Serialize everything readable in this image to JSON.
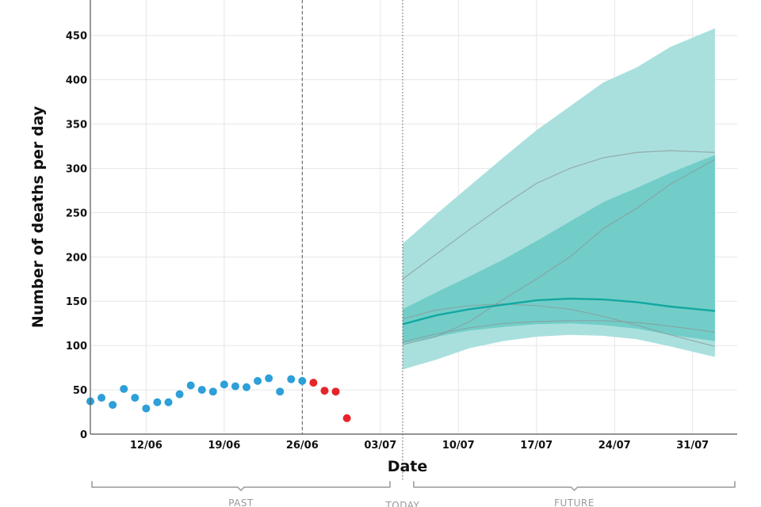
{
  "chart_data": {
    "type": "line",
    "xlabel": "Date",
    "ylabel": "Number of deaths per day",
    "ylim": [
      0,
      490
    ],
    "yticks": [
      0,
      50,
      100,
      150,
      200,
      250,
      300,
      350,
      400,
      450
    ],
    "xlim": [
      "2020-06-07",
      "2020-08-04"
    ],
    "xticks": [
      {
        "date": "2020-06-12",
        "label": "12/06"
      },
      {
        "date": "2020-06-19",
        "label": "19/06"
      },
      {
        "date": "2020-06-26",
        "label": "26/06"
      },
      {
        "date": "2020-07-03",
        "label": "03/07"
      },
      {
        "date": "2020-07-10",
        "label": "10/07"
      },
      {
        "date": "2020-07-17",
        "label": "17/07"
      },
      {
        "date": "2020-07-24",
        "label": "24/07"
      },
      {
        "date": "2020-07-31",
        "label": "31/07"
      }
    ],
    "grid": true,
    "reference_lines": [
      {
        "date": "2020-06-26",
        "style": "dashed"
      },
      {
        "date": "2020-07-05",
        "style": "dotted"
      }
    ],
    "observed": [
      {
        "date": "2020-06-07",
        "value": 37
      },
      {
        "date": "2020-06-08",
        "value": 41
      },
      {
        "date": "2020-06-09",
        "value": 33
      },
      {
        "date": "2020-06-10",
        "value": 51
      },
      {
        "date": "2020-06-11",
        "value": 41
      },
      {
        "date": "2020-06-12",
        "value": 29
      },
      {
        "date": "2020-06-13",
        "value": 36
      },
      {
        "date": "2020-06-14",
        "value": 36
      },
      {
        "date": "2020-06-15",
        "value": 45
      },
      {
        "date": "2020-06-16",
        "value": 55
      },
      {
        "date": "2020-06-17",
        "value": 50
      },
      {
        "date": "2020-06-18",
        "value": 48
      },
      {
        "date": "2020-06-19",
        "value": 56
      },
      {
        "date": "2020-06-20",
        "value": 54
      },
      {
        "date": "2020-06-21",
        "value": 53
      },
      {
        "date": "2020-06-22",
        "value": 60
      },
      {
        "date": "2020-06-23",
        "value": 63
      },
      {
        "date": "2020-06-24",
        "value": 48
      },
      {
        "date": "2020-06-25",
        "value": 62
      },
      {
        "date": "2020-06-26",
        "value": 60
      }
    ],
    "incomplete": [
      {
        "date": "2020-06-27",
        "value": 58
      },
      {
        "date": "2020-06-28",
        "value": 49
      },
      {
        "date": "2020-06-29",
        "value": 48
      },
      {
        "date": "2020-06-30",
        "value": 18
      }
    ],
    "forecast": {
      "dates": [
        "2020-07-05",
        "2020-07-08",
        "2020-07-11",
        "2020-07-14",
        "2020-07-17",
        "2020-07-20",
        "2020-07-23",
        "2020-07-26",
        "2020-07-29",
        "2020-08-02"
      ],
      "outer_upper": [
        215,
        248,
        280,
        312,
        343,
        370,
        397,
        414,
        437,
        458
      ],
      "outer_lower": [
        73,
        84,
        97,
        105,
        110,
        112,
        111,
        107,
        99,
        87
      ],
      "inner_upper": [
        141,
        160,
        178,
        197,
        218,
        240,
        262,
        278,
        295,
        315
      ],
      "inner_lower": [
        102,
        110,
        117,
        121,
        124,
        125,
        123,
        119,
        112,
        105
      ],
      "median": [
        124,
        134,
        141,
        146,
        151,
        153,
        152,
        149,
        144,
        139
      ],
      "scenarios": [
        {
          "values": [
            175,
            203,
            231,
            258,
            283,
            300,
            312,
            318,
            320,
            318
          ]
        },
        {
          "values": [
            101,
            110,
            127,
            152,
            175,
            200,
            232,
            255,
            282,
            310
          ]
        },
        {
          "values": [
            130,
            140,
            145,
            147,
            145,
            141,
            133,
            123,
            112,
            99
          ]
        },
        {
          "values": [
            104,
            113,
            120,
            125,
            127,
            128,
            128,
            126,
            122,
            115
          ]
        }
      ]
    },
    "periods": [
      {
        "label": "PAST"
      },
      {
        "label": "TODAY"
      },
      {
        "label": "FUTURE"
      }
    ],
    "colors": {
      "observed": "#2d9fd9",
      "incomplete": "#e5252a",
      "outer_band": "#a9e0dd",
      "inner_band": "#72cdc8",
      "median": "#13a8a1",
      "scenario": "#8c9a99",
      "grid": "#e6e6e6",
      "axis": "#555555",
      "bracket": "#a8a8a8"
    }
  }
}
